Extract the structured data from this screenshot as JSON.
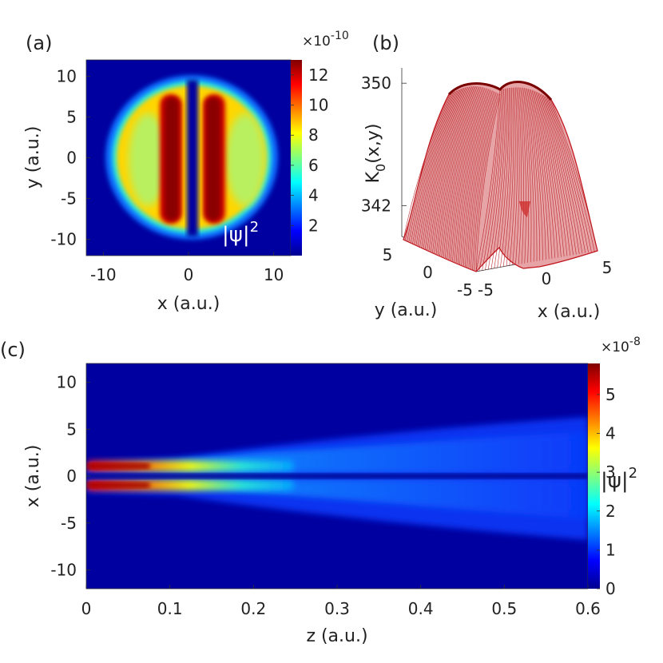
{
  "chart_data": [
    {
      "panel": "(a)",
      "type": "heatmap",
      "title": "",
      "xlabel": "x (a.u.)",
      "ylabel": "y (a.u.)",
      "xlim": [
        -12,
        12
      ],
      "ylim": [
        -12,
        12
      ],
      "xticks": [
        -10,
        0,
        10
      ],
      "yticks": [
        10,
        5,
        0,
        -5,
        -10
      ],
      "colorbar": {
        "min": 0,
        "max": 13,
        "ticks": [
          12,
          10,
          8,
          6,
          4,
          2
        ],
        "multiplier": "×10",
        "exponent": "-10",
        "colormap": "jet"
      },
      "annotation": {
        "base": "|ψ|",
        "sup": "2"
      },
      "description_values": {
        "lobe_centers_x": [
          -3,
          3
        ],
        "lobe_peak": 12.5,
        "disk_radius": 10
      }
    },
    {
      "panel": "(b)",
      "type": "surface",
      "title": "",
      "zlabel": {
        "base": "K",
        "sub": "0",
        "rest": "(x,y)"
      },
      "xlabel": "x (a.u.)",
      "ylabel": "y (a.u.)",
      "zlim": [
        340,
        351
      ],
      "zticks": [
        350,
        342
      ],
      "xticks": [
        -5,
        0,
        5
      ],
      "yticks": [
        5,
        0,
        -5
      ],
      "color": "#c0141b"
    },
    {
      "panel": "(c)",
      "type": "heatmap",
      "title": "",
      "xlabel": "z (a.u.)",
      "ylabel": "x (a.u.)",
      "xlim": [
        0,
        0.6
      ],
      "ylim": [
        -12,
        12
      ],
      "xticks": [
        0,
        0.1,
        0.2,
        0.3,
        0.4,
        0.5,
        0.6
      ],
      "yticks": [
        10,
        5,
        0,
        -5,
        -10
      ],
      "colorbar": {
        "min": 0,
        "max": 5.8,
        "ticks": [
          5,
          4,
          3,
          2,
          1,
          0
        ],
        "multiplier": "×10",
        "exponent": "-8",
        "colormap": "jet"
      },
      "annotation": {
        "base": "|ψ|",
        "sup": "2"
      },
      "description_values": {
        "initial_lobes_x": [
          -1.2,
          1.2
        ],
        "initial_peak": 5.6,
        "spread_width_at_end": 5
      }
    }
  ]
}
